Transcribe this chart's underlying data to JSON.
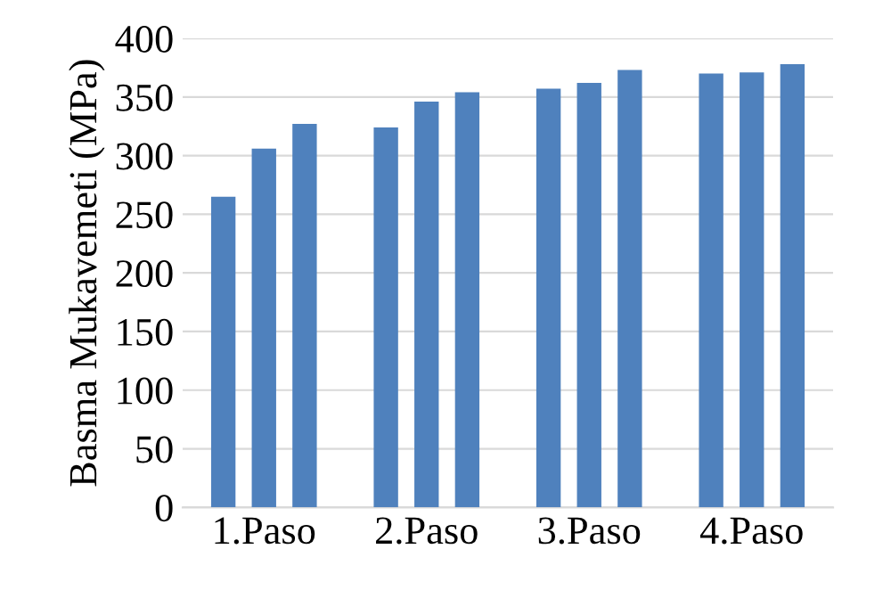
{
  "chart_data": {
    "type": "bar",
    "ylabel": "Basma Mukavemeti (MPa)",
    "categories": [
      "1.Paso",
      "2.Paso",
      "3.Paso",
      "4.Paso"
    ],
    "series": [
      {
        "color": "#4f81bd",
        "values": [
          265,
          324,
          357,
          370
        ]
      },
      {
        "color": "#4f81bd",
        "values": [
          306,
          346,
          362,
          371
        ]
      },
      {
        "color": "#4f81bd",
        "values": [
          327,
          354,
          373,
          378
        ]
      }
    ],
    "ylim": [
      0,
      400
    ],
    "yticks": [
      0,
      50,
      100,
      150,
      200,
      250,
      300,
      350,
      400
    ],
    "grid": "y",
    "legend": false
  }
}
